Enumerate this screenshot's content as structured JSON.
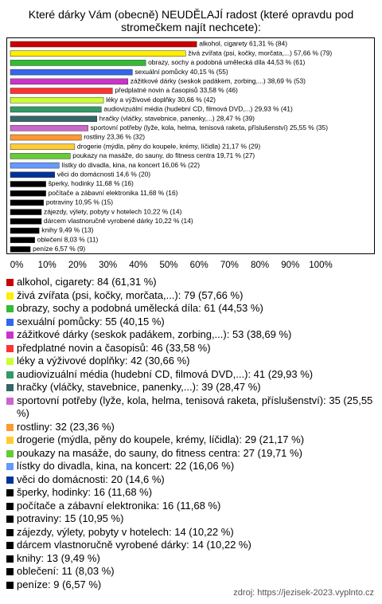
{
  "chart_data": {
    "type": "hbar",
    "title": "Které dárky Vám (obecně) NEUDĚLAJÍ radost (které opravdu pod stromečkem najít nechcete):",
    "values": [
      61.31,
      57.66,
      44.53,
      40.15,
      38.69,
      33.58,
      30.66,
      29.93,
      28.47,
      25.55,
      23.36,
      21.17,
      19.71,
      16.06,
      14.6,
      11.68,
      11.68,
      10.95,
      10.22,
      10.22,
      9.49,
      8.03,
      6.57
    ],
    "value_labels": [
      "alkohol, cigarety 61,31 % (84)",
      "živá zvířata (psi, kočky, morčata,...) 57,66 % (79)",
      "obrazy, sochy a podobná umělecká díla 44,53 % (61)",
      "sexuální pomůcky 40,15 % (55)",
      "zážitkové dárky (seskok padákem, zorbing,...) 38,69 % (53)",
      "předplatné novin a časopisů 33,58 % (46)",
      "léky a výživové doplňky 30,66 % (42)",
      "audiovizuální média (hudební CD, filmová DVD,...) 29,93 % (41)",
      "hračky (vláčky, stavebnice, panenky,...) 28,47 % (39)",
      "sportovní potřeby (lyže, kola, helma, tenisová raketa, příslušenství) 25,55 % (35)",
      "rostliny 23,36 % (32)",
      "drogerie (mýdla, pěny do koupele, krémy, líčidla) 21,17 % (29)",
      "poukazy na masáže, do sauny, do fitness centra 19,71 % (27)",
      "lístky do divadla, kina, na koncert 16,06 % (22)",
      "věci do domácnosti 14,6 % (20)",
      "šperky, hodinky 11,68 % (16)",
      "počítače a zábavní elektronika 11,68 % (16)",
      "potraviny 10,95 % (15)",
      "zájezdy, výlety, pobyty v hotelech 10,22 % (14)",
      "dárcem vlastnoručně vyrobené dárky 10,22 % (14)",
      "knihy 9,49 % (13)",
      "oblečení 8,03 % (11)",
      "peníze 6,57 % (9)"
    ],
    "legend_labels": [
      "alkohol, cigarety: 84 (61,31 %)",
      "živá zvířata (psi, kočky, morčata,...): 79 (57,66 %)",
      "obrazy, sochy a podobná umělecká díla: 61 (44,53 %)",
      "sexuální pomůcky: 55 (40,15 %)",
      "zážitkové dárky (seskok padákem, zorbing,...): 53 (38,69 %)",
      "předplatné novin a časopisů: 46 (33,58 %)",
      "léky a výživové doplňky: 42 (30,66 %)",
      "audiovizuální média (hudební CD, filmová DVD,...): 41 (29,93 %)",
      "hračky (vláčky, stavebnice, panenky,...): 39 (28,47 %)",
      "sportovní potřeby (lyže, kola, helma, tenisová raketa, příslušenství): 35 (25,55 %)",
      "rostliny: 32 (23,36 %)",
      "drogerie (mýdla, pěny do koupele, krémy, líčidla): 29 (21,17 %)",
      "poukazy na masáže, do sauny, do fitness centra: 27 (19,71 %)",
      "lístky do divadla, kina, na koncert: 22 (16,06 %)",
      "věci do domácnosti: 20 (14,6 %)",
      "šperky, hodinky: 16 (11,68 %)",
      "počítače a zábavní elektronika: 16 (11,68 %)",
      "potraviny: 15 (10,95 %)",
      "zájezdy, výlety, pobyty v hotelech: 14 (10,22 %)",
      "dárcem vlastnoručně vyrobené dárky: 14 (10,22 %)",
      "knihy: 13 (9,49 %)",
      "oblečení: 11 (8,03 %)",
      "peníze: 9 (6,57 %)"
    ],
    "colors": [
      "#cc0000",
      "#ffee00",
      "#33bb33",
      "#3366ee",
      "#cc33cc",
      "#ff3333",
      "#ccff33",
      "#339966",
      "#336666",
      "#cc66cc",
      "#ff9933",
      "#ffcc33",
      "#66cc33",
      "#6699ff",
      "#003399",
      "#000000",
      "#000000",
      "#000000",
      "#000000",
      "#000000",
      "#000000",
      "#000000",
      "#000000"
    ],
    "xlim": [
      0,
      100
    ],
    "xticks": [
      {
        "value": 0,
        "label": "0%"
      },
      {
        "value": 10,
        "label": "10%"
      },
      {
        "value": 20,
        "label": "20%"
      },
      {
        "value": 30,
        "label": "30%"
      },
      {
        "value": 40,
        "label": "40%"
      },
      {
        "value": 50,
        "label": "50%"
      },
      {
        "value": 60,
        "label": "60%"
      },
      {
        "value": 70,
        "label": "70%"
      },
      {
        "value": 80,
        "label": "80%"
      },
      {
        "value": 90,
        "label": "90%"
      },
      {
        "value": 100,
        "label": "100%"
      }
    ],
    "source": "zdroj: https://jezisek-2023.vyplnto.cz"
  }
}
